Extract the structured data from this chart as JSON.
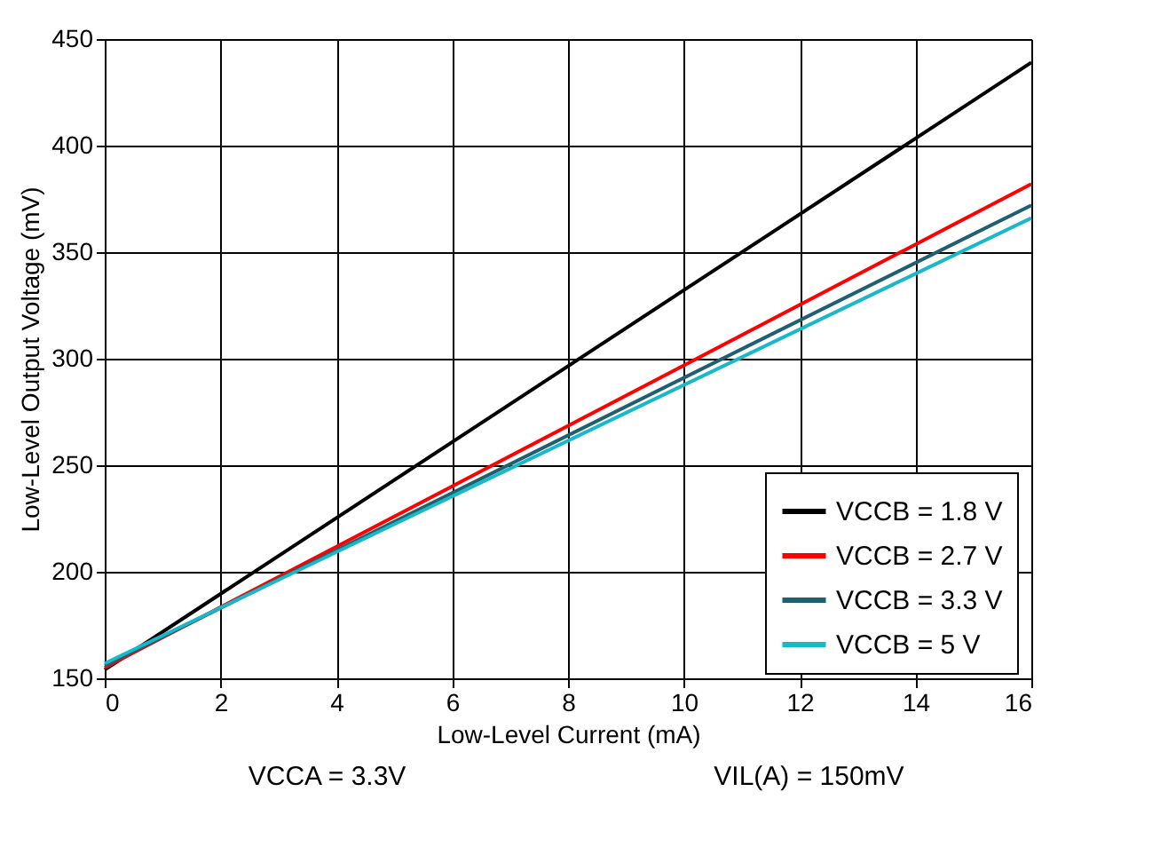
{
  "chart_data": {
    "type": "line",
    "xlabel": "Low-Level Current (mA)",
    "ylabel": "Low-Level Output Voltage (mV)",
    "x": [
      0,
      16
    ],
    "series": [
      {
        "name": "VCCB = 1.8 V",
        "color": "#000000",
        "values": [
          154,
          439
        ]
      },
      {
        "name": "VCCB = 2.7 V",
        "color": "#ff0000",
        "values": [
          155,
          382
        ]
      },
      {
        "name": "VCCB = 3.3 V",
        "color": "#1f5f6f",
        "values": [
          156,
          372
        ]
      },
      {
        "name": "VCCB = 5 V",
        "color": "#18b8c8",
        "values": [
          157,
          366
        ]
      }
    ],
    "xlim": [
      0,
      16
    ],
    "xticks": [
      0,
      2,
      4,
      6,
      8,
      10,
      12,
      14,
      16
    ],
    "ylim": [
      150,
      450
    ],
    "yticks": [
      150,
      200,
      250,
      300,
      350,
      400,
      450
    ],
    "grid": true,
    "legend": "bottom right",
    "marker": "none",
    "line_style": "solid",
    "annotations": [
      "VCCA = 3.3V",
      "VIL(A) = 150mV"
    ]
  }
}
